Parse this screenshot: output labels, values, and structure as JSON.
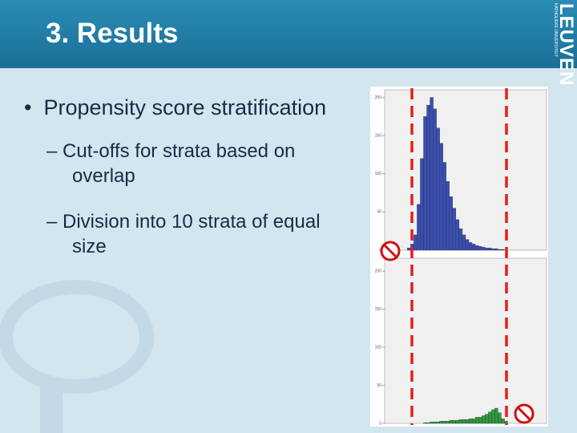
{
  "slide": {
    "title": "3. Results",
    "logo": {
      "name": "LEUVEN",
      "line": "KATHOLIEKE UNIVERSITEIT"
    },
    "bullets": [
      {
        "text": "Propensity score stratification",
        "level": 1
      },
      {
        "text": "Cut-offs for strata based on overlap",
        "level": 2
      },
      {
        "text": "Division into 10 strata of equal size",
        "level": 2
      }
    ]
  },
  "chart_data": [
    {
      "type": "histogram",
      "color": "#3b4fb0",
      "xlim": [
        0,
        1
      ],
      "ylim": [
        0,
        210
      ],
      "yticks": [
        0,
        50,
        100,
        150,
        200
      ],
      "bins": [
        0.14,
        0.16,
        0.18,
        0.2,
        0.22,
        0.24,
        0.26,
        0.28,
        0.3,
        0.32,
        0.34,
        0.36,
        0.38,
        0.4,
        0.42,
        0.44,
        0.46,
        0.48,
        0.5,
        0.52,
        0.54,
        0.56,
        0.58,
        0.6,
        0.62,
        0.64,
        0.66,
        0.68,
        0.7,
        0.72,
        0.74
      ],
      "counts": [
        3,
        8,
        20,
        60,
        120,
        175,
        190,
        200,
        185,
        160,
        140,
        115,
        90,
        70,
        55,
        40,
        28,
        20,
        14,
        10,
        8,
        6,
        5,
        4,
        3,
        3,
        2,
        2,
        1,
        1
      ]
    },
    {
      "type": "histogram",
      "color": "#2e9a3e",
      "xlim": [
        0,
        1
      ],
      "ylim": [
        0,
        217
      ],
      "yticks": [
        0,
        50,
        100,
        150,
        200
      ],
      "bins": [
        0.24,
        0.26,
        0.28,
        0.3,
        0.32,
        0.34,
        0.36,
        0.38,
        0.4,
        0.42,
        0.44,
        0.46,
        0.48,
        0.5,
        0.52,
        0.54,
        0.56,
        0.58,
        0.6,
        0.62,
        0.64,
        0.66,
        0.68,
        0.7,
        0.72,
        0.74,
        0.76
      ],
      "counts": [
        1,
        1,
        2,
        2,
        2,
        3,
        3,
        3,
        4,
        4,
        4,
        5,
        5,
        5,
        6,
        6,
        8,
        8,
        10,
        12,
        15,
        18,
        20,
        14,
        6,
        3
      ]
    }
  ]
}
